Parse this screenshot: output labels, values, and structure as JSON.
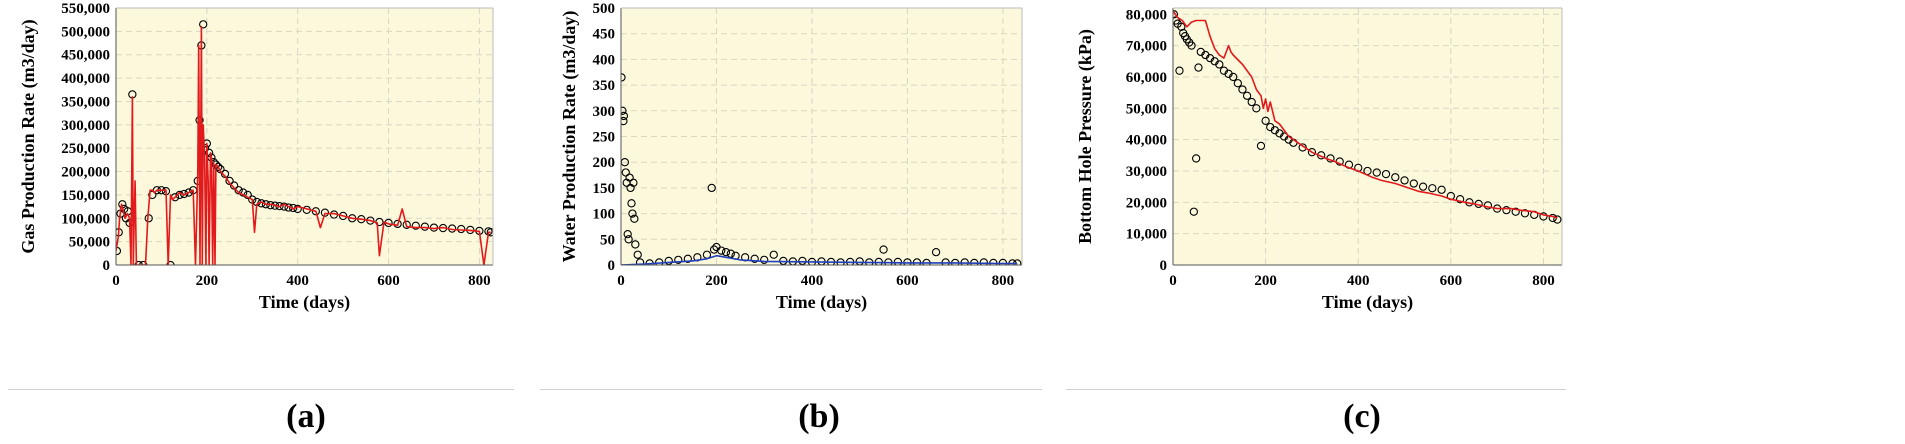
{
  "colors": {
    "plot_bg": "#fbf8dc",
    "grid": "#d9d6c3",
    "simulated_red": "#e31a1c",
    "observed_marker": "#000000",
    "water_sim_blue": "#1f3fbf"
  },
  "captions": [
    "(a)",
    "(b)",
    "(c)"
  ],
  "chart_data": [
    {
      "type": "line",
      "panel": "a",
      "xlabel": "Time (days)",
      "ylabel": "Gas Production Rate (m3/day)",
      "xlim": [
        0,
        830
      ],
      "ylim": [
        0,
        550000
      ],
      "xticks": [
        0,
        200,
        400,
        600,
        800
      ],
      "yticks": [
        0,
        50000,
        100000,
        150000,
        200000,
        250000,
        300000,
        350000,
        400000,
        450000,
        500000,
        550000
      ],
      "ytick_labels": [
        "0",
        "50,000",
        "100,000",
        "150,000",
        "200,000",
        "250,000",
        "300,000",
        "350,000",
        "400,000",
        "450,000",
        "500,000",
        "550,000"
      ],
      "grid": true,
      "series": [
        {
          "role": "simulated",
          "style": "line",
          "color": "#e31a1c",
          "x": [
            0,
            5,
            8,
            12,
            15,
            20,
            25,
            30,
            33,
            36,
            38,
            40,
            42,
            45,
            48,
            55,
            60,
            65,
            70,
            75,
            80,
            85,
            90,
            100,
            110,
            115,
            120,
            125,
            130,
            135,
            140,
            150,
            160,
            170,
            175,
            180,
            182,
            185,
            188,
            190,
            192,
            195,
            198,
            200,
            203,
            205,
            208,
            210,
            213,
            215,
            218,
            220,
            225,
            230,
            240,
            250,
            260,
            270,
            280,
            290,
            300,
            305,
            310,
            320,
            330,
            340,
            350,
            360,
            370,
            380,
            390,
            400,
            420,
            440,
            450,
            460,
            480,
            500,
            520,
            540,
            560,
            575,
            580,
            590,
            600,
            620,
            630,
            640,
            660,
            680,
            700,
            720,
            740,
            760,
            780,
            800,
            810,
            820,
            825
          ],
          "y": [
            30000,
            60000,
            100000,
            130000,
            120000,
            100000,
            110000,
            100000,
            0,
            360000,
            0,
            100000,
            180000,
            0,
            0,
            0,
            0,
            0,
            100000,
            160000,
            160000,
            155000,
            160000,
            160000,
            160000,
            0,
            150000,
            140000,
            145000,
            150000,
            155000,
            150000,
            155000,
            160000,
            0,
            200000,
            470000,
            0,
            510000,
            0,
            300000,
            230000,
            0,
            260000,
            180000,
            0,
            240000,
            230000,
            0,
            220000,
            0,
            215000,
            210000,
            200000,
            190000,
            175000,
            165000,
            155000,
            150000,
            145000,
            140000,
            70000,
            130000,
            135000,
            130000,
            130000,
            128000,
            125000,
            130000,
            125000,
            120000,
            125000,
            120000,
            115000,
            80000,
            110000,
            110000,
            105000,
            100000,
            98000,
            95000,
            90000,
            20000,
            92000,
            88000,
            85000,
            120000,
            82000,
            80000,
            80000,
            78000,
            80000,
            76000,
            75000,
            74000,
            72000,
            0,
            70000,
            70000
          ]
        },
        {
          "role": "observed",
          "style": "markers",
          "marker": "open-circle",
          "color": "#000000",
          "x": [
            2,
            6,
            10,
            14,
            18,
            22,
            26,
            30,
            36,
            50,
            60,
            72,
            80,
            90,
            100,
            110,
            120,
            130,
            140,
            150,
            160,
            170,
            180,
            184,
            188,
            192,
            196,
            200,
            205,
            210,
            215,
            220,
            225,
            230,
            240,
            250,
            260,
            270,
            280,
            290,
            300,
            310,
            320,
            330,
            340,
            350,
            360,
            370,
            380,
            390,
            400,
            420,
            440,
            460,
            480,
            500,
            520,
            540,
            560,
            580,
            600,
            620,
            640,
            660,
            680,
            700,
            720,
            740,
            760,
            780,
            800,
            820,
            825
          ],
          "y": [
            30000,
            70000,
            110000,
            130000,
            120000,
            100000,
            115000,
            90000,
            365000,
            0,
            0,
            100000,
            150000,
            160000,
            160000,
            158000,
            0,
            145000,
            150000,
            152000,
            155000,
            160000,
            180000,
            310000,
            470000,
            515000,
            250000,
            260000,
            240000,
            230000,
            220000,
            215000,
            210000,
            205000,
            195000,
            180000,
            170000,
            160000,
            155000,
            150000,
            140000,
            135000,
            132000,
            130000,
            128000,
            127000,
            126000,
            125000,
            123000,
            122000,
            120000,
            118000,
            115000,
            112000,
            108000,
            105000,
            100000,
            98000,
            95000,
            92000,
            90000,
            88000,
            86000,
            84000,
            82000,
            80000,
            79000,
            78000,
            77000,
            75000,
            73000,
            72000,
            70000
          ]
        }
      ]
    },
    {
      "type": "line",
      "panel": "b",
      "xlabel": "Time (days)",
      "ylabel": "Water Production Rate (m3/day)",
      "xlim": [
        0,
        840
      ],
      "ylim": [
        0,
        500
      ],
      "xticks": [
        0,
        200,
        400,
        600,
        800
      ],
      "yticks": [
        0,
        50,
        100,
        150,
        200,
        250,
        300,
        350,
        400,
        450,
        500
      ],
      "ytick_labels": [
        "0",
        "50",
        "100",
        "150",
        "200",
        "250",
        "300",
        "350",
        "400",
        "450",
        "500"
      ],
      "grid": true,
      "series": [
        {
          "role": "simulated",
          "style": "line",
          "color": "#1f3fbf",
          "x": [
            0,
            50,
            100,
            150,
            180,
            200,
            220,
            250,
            300,
            400,
            500,
            600,
            700,
            800,
            830
          ],
          "y": [
            0,
            2,
            5,
            8,
            12,
            18,
            15,
            10,
            7,
            6,
            5,
            4,
            4,
            3,
            3
          ]
        },
        {
          "role": "observed",
          "style": "markers",
          "marker": "open-circle",
          "color": "#000000",
          "x": [
            1,
            3,
            5,
            6,
            8,
            10,
            12,
            14,
            16,
            18,
            20,
            22,
            24,
            26,
            28,
            30,
            35,
            40,
            60,
            80,
            100,
            120,
            140,
            160,
            180,
            190,
            195,
            200,
            210,
            220,
            230,
            240,
            260,
            280,
            300,
            320,
            340,
            360,
            380,
            400,
            420,
            440,
            460,
            480,
            500,
            520,
            540,
            550,
            560,
            580,
            600,
            620,
            640,
            660,
            680,
            700,
            720,
            740,
            760,
            780,
            800,
            820,
            830
          ],
          "y": [
            365,
            300,
            280,
            290,
            200,
            180,
            160,
            60,
            50,
            170,
            150,
            120,
            100,
            160,
            90,
            40,
            20,
            5,
            3,
            5,
            8,
            10,
            12,
            15,
            20,
            150,
            30,
            35,
            28,
            25,
            22,
            18,
            15,
            12,
            10,
            20,
            8,
            7,
            8,
            6,
            7,
            6,
            5,
            6,
            7,
            5,
            6,
            30,
            5,
            6,
            5,
            5,
            4,
            25,
            5,
            4,
            5,
            4,
            5,
            4,
            4,
            3,
            3
          ]
        }
      ]
    },
    {
      "type": "line",
      "panel": "c",
      "xlabel": "Time (days)",
      "ylabel": "Bottom Hole Pressure (kPa)",
      "xlim": [
        0,
        840
      ],
      "ylim": [
        0,
        82000
      ],
      "xticks": [
        0,
        200,
        400,
        600,
        800
      ],
      "yticks": [
        0,
        10000,
        20000,
        30000,
        40000,
        50000,
        60000,
        70000,
        80000
      ],
      "ytick_labels": [
        "0",
        "10,000",
        "20,000",
        "30,000",
        "40,000",
        "50,000",
        "60,000",
        "70,000",
        "80,000"
      ],
      "grid": true,
      "series": [
        {
          "role": "simulated",
          "style": "line",
          "color": "#e31a1c",
          "x": [
            0,
            10,
            20,
            30,
            40,
            50,
            60,
            70,
            80,
            90,
            100,
            110,
            120,
            125,
            130,
            150,
            170,
            180,
            190,
            195,
            200,
            205,
            210,
            220,
            230,
            250,
            280,
            300,
            330,
            350,
            380,
            400,
            430,
            450,
            480,
            500,
            530,
            550,
            580,
            600,
            630,
            650,
            680,
            700,
            730,
            750,
            780,
            800,
            820,
            830
          ],
          "y": [
            81000,
            79000,
            78000,
            76000,
            77500,
            78000,
            78000,
            78000,
            73000,
            69000,
            67000,
            66000,
            70000,
            68000,
            67000,
            64000,
            60000,
            56000,
            54000,
            50000,
            53000,
            49000,
            52000,
            46000,
            45000,
            41000,
            38000,
            36000,
            34000,
            33000,
            31000,
            30000,
            28000,
            27000,
            26000,
            25000,
            23500,
            23000,
            22000,
            21000,
            20000,
            19500,
            18500,
            18000,
            18000,
            17500,
            17000,
            16000,
            15500,
            15000
          ]
        },
        {
          "role": "observed",
          "style": "markers",
          "marker": "open-circle",
          "color": "#000000",
          "x": [
            2,
            6,
            10,
            14,
            18,
            22,
            26,
            30,
            35,
            40,
            45,
            50,
            55,
            60,
            70,
            80,
            90,
            100,
            110,
            120,
            130,
            140,
            150,
            160,
            170,
            180,
            190,
            200,
            210,
            220,
            230,
            240,
            250,
            260,
            280,
            300,
            320,
            340,
            360,
            380,
            400,
            420,
            440,
            460,
            480,
            500,
            520,
            540,
            560,
            580,
            600,
            620,
            640,
            660,
            680,
            700,
            720,
            740,
            760,
            780,
            800,
            820,
            830
          ],
          "y": [
            80000,
            78000,
            77000,
            62000,
            76000,
            74000,
            73000,
            72000,
            71000,
            70000,
            17000,
            34000,
            63000,
            68000,
            67000,
            66000,
            65000,
            64000,
            62000,
            61000,
            60000,
            58000,
            56000,
            54000,
            52000,
            50000,
            38000,
            46000,
            44000,
            43000,
            42000,
            41000,
            40000,
            39000,
            37500,
            36000,
            35000,
            34000,
            33000,
            32000,
            31000,
            30000,
            29500,
            29000,
            28000,
            27000,
            26000,
            25000,
            24500,
            24000,
            22000,
            21000,
            20000,
            19500,
            19000,
            18000,
            17500,
            17000,
            16500,
            16000,
            15500,
            15000,
            14500
          ]
        }
      ]
    }
  ]
}
